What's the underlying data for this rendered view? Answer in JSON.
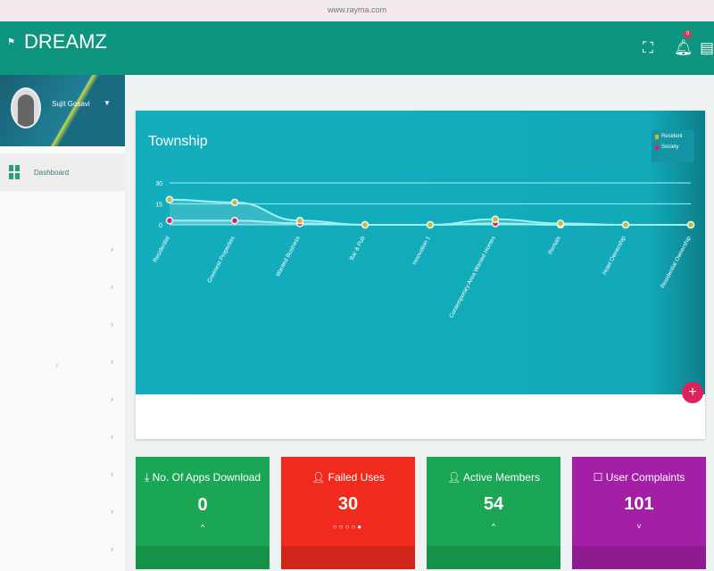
{
  "browser": {
    "url": "www.rayma.com"
  },
  "header": {
    "app_name": "DREAMZ",
    "notification_count": "0",
    "icons": [
      "fullscreen-icon",
      "bell-icon",
      "chat-icon"
    ]
  },
  "sidebar": {
    "user_name": "Sujit Gosavi",
    "items": [
      {
        "label": "Dashboard"
      }
    ]
  },
  "chart_card": {
    "fab_label": "+"
  },
  "chart_data": {
    "type": "line",
    "title": "Township",
    "categories": [
      "Residential",
      "Greenest Properties",
      "Wanted Business",
      "Bar & Pub",
      "Innovation 1",
      "Contemporary Area Wanted Homes",
      "Rentals",
      "Hotel Ownership",
      "Residential Ownership"
    ],
    "series": [
      {
        "name": "Resident",
        "color": "#c9b83a",
        "values": [
          18,
          16,
          3,
          0,
          0,
          4,
          1,
          0,
          0
        ]
      },
      {
        "name": "Society",
        "color": "#d9235a",
        "values": [
          3,
          3,
          1,
          0,
          0,
          1,
          0,
          0,
          0
        ]
      }
    ],
    "yticks": [
      "0",
      "15",
      "30"
    ],
    "ylim": [
      0,
      30
    ],
    "grid": true,
    "legend": "top-right",
    "smooth": true
  },
  "stats": [
    {
      "label": "No. Of Apps Download",
      "icon": "download-icon",
      "value": "0",
      "color": "#1aa654",
      "arrow": "^"
    },
    {
      "label": "Failed Uses",
      "icon": "user-icon",
      "value": "30",
      "color": "#f02b1d",
      "arrow": ""
    },
    {
      "label": "Active Members",
      "icon": "user-icon",
      "value": "54",
      "color": "#1aa654",
      "arrow": "^"
    },
    {
      "label": "User Complaints",
      "icon": "clipboard-icon",
      "value": "101",
      "color": "#a31fa6",
      "arrow": "˅"
    }
  ]
}
